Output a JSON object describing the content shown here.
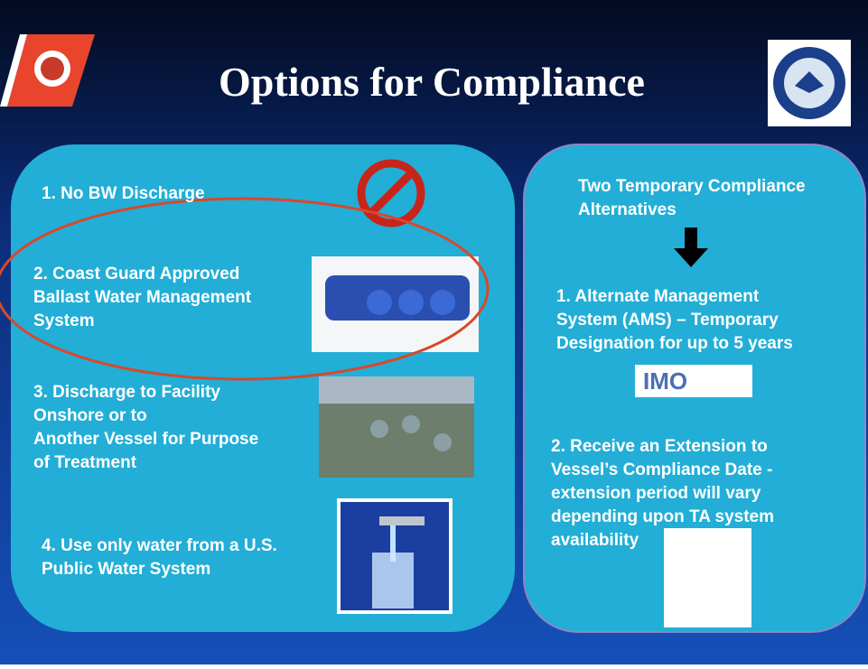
{
  "header": {
    "title": "Options for Compliance"
  },
  "left_panel": {
    "items": [
      {
        "lines": [
          "1. No BW Discharge"
        ]
      },
      {
        "lines": [
          "2. Coast Guard Approved",
          "Ballast Water Management",
          "System"
        ]
      },
      {
        "lines": [
          "3. Discharge to Facility",
          "Onshore or to",
          "Another Vessel for Purpose",
          "of Treatment"
        ]
      },
      {
        "lines": [
          "4. Use only water from a U.S.",
          "Public Water System"
        ]
      }
    ]
  },
  "right_panel": {
    "heading": [
      "Two Temporary Compliance",
      "Alternatives"
    ],
    "items": [
      {
        "lines": [
          "1.  Alternate Management",
          "System (AMS) –  Temporary",
          "Designation for up to 5 years"
        ]
      },
      {
        "lines": [
          "2.  Receive an Extension to",
          "Vessel’s Compliance Date -",
          "extension period will vary",
          "depending upon TA system",
          "availability"
        ]
      }
    ],
    "logo": "IMO"
  }
}
